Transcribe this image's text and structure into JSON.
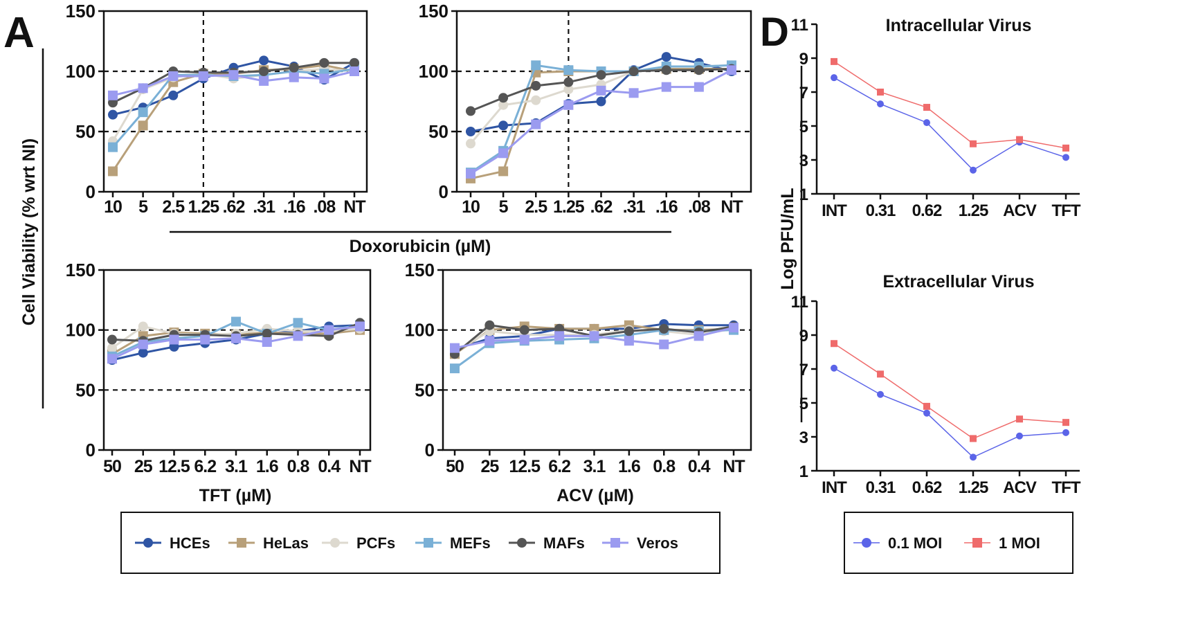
{
  "panel_labels": {
    "a": "A",
    "d": "D"
  },
  "colors": {
    "HCEs": "#2f55a4",
    "HeLas": "#b8a07a",
    "PCFs": "#ddd9cf",
    "MEFs": "#7ab0d6",
    "MAFs": "#555555",
    "Veros": "#9b9bf0",
    "moi_01": "#5b64e8",
    "moi_1": "#ef6b6b"
  },
  "shared": {
    "ylabel_a": "Cell Viability (% wrt NI)",
    "xlabel_dox": "Doxorubicin (µM)",
    "ylabel_d": "Log PFU/mL"
  },
  "legend_a": [
    {
      "name": "HCEs",
      "marker": "circle"
    },
    {
      "name": "HeLas",
      "marker": "square"
    },
    {
      "name": "PCFs",
      "marker": "circle"
    },
    {
      "name": "MEFs",
      "marker": "square"
    },
    {
      "name": "MAFs",
      "marker": "circle"
    },
    {
      "name": "Veros",
      "marker": "square"
    }
  ],
  "legend_d": [
    {
      "name": "0.1 MOI",
      "marker": "circle"
    },
    {
      "name": "1 MOI",
      "marker": "square"
    }
  ],
  "chart_data": [
    {
      "type": "line",
      "panel": "A",
      "title": "",
      "xlabel": "Doxorubicin (µM)",
      "ylabel": "Cell Viability (% wrt NI)",
      "categories": [
        "10",
        "5",
        "2.5",
        "1.25",
        ".62",
        ".31",
        ".16",
        ".08",
        "NT"
      ],
      "ylim": [
        0,
        150
      ],
      "yticks": [
        0,
        50,
        100,
        150
      ],
      "reference_lines_y": [
        50,
        100
      ],
      "reference_line_x": "1.25",
      "series": [
        {
          "name": "HCEs",
          "values": [
            64,
            70,
            80,
            94,
            103,
            109,
            104,
            93,
            107
          ]
        },
        {
          "name": "HeLas",
          "values": [
            17,
            55,
            91,
            98,
            98,
            101,
            102,
            105,
            100
          ]
        },
        {
          "name": "PCFs",
          "values": [
            42,
            85,
            95,
            98,
            94,
            97,
            100,
            102,
            100
          ]
        },
        {
          "name": "MEFs",
          "values": [
            37,
            66,
            97,
            97,
            96,
            97,
            100,
            98,
            102
          ]
        },
        {
          "name": "MAFs",
          "values": [
            74,
            86,
            100,
            99,
            99,
            100,
            103,
            107,
            107
          ]
        },
        {
          "name": "Veros",
          "values": [
            80,
            86,
            96,
            96,
            97,
            92,
            95,
            94,
            100
          ]
        }
      ]
    },
    {
      "type": "line",
      "panel": "A",
      "title": "",
      "xlabel": "Doxorubicin (µM)",
      "ylabel": "Cell Viability (% wrt NI)",
      "categories": [
        "10",
        "5",
        "2.5",
        "1.25",
        ".62",
        ".31",
        ".16",
        ".08",
        "NT"
      ],
      "ylim": [
        0,
        150
      ],
      "yticks": [
        0,
        50,
        100,
        150
      ],
      "reference_lines_y": [
        50,
        100
      ],
      "reference_line_x": "1.25",
      "series": [
        {
          "name": "HCEs",
          "values": [
            50,
            55,
            57,
            73,
            75,
            101,
            112,
            107,
            100
          ]
        },
        {
          "name": "HeLas",
          "values": [
            11,
            17,
            99,
            100,
            100,
            100,
            102,
            102,
            102
          ]
        },
        {
          "name": "PCFs",
          "values": [
            40,
            72,
            76,
            85,
            89,
            100,
            104,
            104,
            105
          ]
        },
        {
          "name": "MEFs",
          "values": [
            16,
            34,
            105,
            101,
            100,
            100,
            104,
            104,
            105
          ]
        },
        {
          "name": "MAFs",
          "values": [
            67,
            78,
            88,
            91,
            97,
            100,
            101,
            101,
            102
          ]
        },
        {
          "name": "Veros",
          "values": [
            15,
            32,
            56,
            72,
            84,
            82,
            87,
            87,
            101
          ]
        }
      ]
    },
    {
      "type": "line",
      "panel": "A",
      "title": "",
      "xlabel": "TFT (µM)",
      "ylabel": "Cell Viability (% wrt NI)",
      "categories": [
        "50",
        "25",
        "12.5",
        "6.2",
        "3.1",
        "1.6",
        "0.8",
        "0.4",
        "NT"
      ],
      "ylim": [
        0,
        150
      ],
      "yticks": [
        0,
        50,
        100,
        150
      ],
      "reference_lines_y": [
        50,
        100
      ],
      "series": [
        {
          "name": "HCEs",
          "values": [
            75,
            81,
            86,
            89,
            92,
            97,
            99,
            103,
            104
          ]
        },
        {
          "name": "HeLas",
          "values": [
            80,
            95,
            98,
            97,
            96,
            98,
            97,
            97,
            100
          ]
        },
        {
          "name": "PCFs",
          "values": [
            85,
            103,
            97,
            96,
            97,
            101,
            99,
            99,
            101
          ]
        },
        {
          "name": "MEFs",
          "values": [
            78,
            90,
            93,
            95,
            107,
            97,
            106,
            100,
            104
          ]
        },
        {
          "name": "MAFs",
          "values": [
            92,
            91,
            96,
            96,
            95,
            97,
            96,
            95,
            106
          ]
        },
        {
          "name": "Veros",
          "values": [
            76,
            88,
            92,
            92,
            93,
            90,
            95,
            100,
            103
          ]
        }
      ]
    },
    {
      "type": "line",
      "panel": "A",
      "title": "",
      "xlabel": "ACV (µM)",
      "ylabel": "Cell Viability (% wrt NI)",
      "categories": [
        "50",
        "25",
        "12.5",
        "6.2",
        "3.1",
        "1.6",
        "0.8",
        "0.4",
        "NT"
      ],
      "ylim": [
        0,
        150
      ],
      "yticks": [
        0,
        50,
        100,
        150
      ],
      "reference_lines_y": [
        50,
        100
      ],
      "series": [
        {
          "name": "HCEs",
          "values": [
            84,
            93,
            95,
            101,
            101,
            101,
            105,
            104,
            104
          ]
        },
        {
          "name": "HeLas",
          "values": [
            80,
            100,
            103,
            101,
            101,
            104,
            100,
            100,
            101
          ]
        },
        {
          "name": "PCFs",
          "values": [
            82,
            99,
            96,
            96,
            96,
            100,
            99,
            96,
            101
          ]
        },
        {
          "name": "MEFs",
          "values": [
            68,
            89,
            91,
            92,
            93,
            96,
            100,
            99,
            100
          ]
        },
        {
          "name": "MAFs",
          "values": [
            80,
            104,
            100,
            101,
            95,
            99,
            101,
            98,
            103
          ]
        },
        {
          "name": "Veros",
          "values": [
            85,
            91,
            92,
            95,
            95,
            91,
            88,
            95,
            102
          ]
        }
      ]
    },
    {
      "type": "line",
      "panel": "D",
      "title": "Intracellular Virus",
      "xlabel": "",
      "ylabel": "Log PFU/mL",
      "categories": [
        "INT",
        "0.31",
        "0.62",
        "1.25",
        "ACV",
        "TFT"
      ],
      "ylim": [
        1,
        11
      ],
      "yticks": [
        1,
        3,
        5,
        7,
        9,
        11
      ],
      "series": [
        {
          "name": "0.1 MOI",
          "values": [
            7.85,
            6.3,
            5.2,
            2.4,
            4.05,
            3.15
          ]
        },
        {
          "name": "1 MOI",
          "values": [
            8.8,
            7.0,
            6.1,
            3.95,
            4.2,
            3.7
          ]
        }
      ]
    },
    {
      "type": "line",
      "panel": "D",
      "title": "Extracellular Virus",
      "xlabel": "",
      "ylabel": "Log PFU/mL",
      "categories": [
        "INT",
        "0.31",
        "0.62",
        "1.25",
        "ACV",
        "TFT"
      ],
      "ylim": [
        1,
        11
      ],
      "yticks": [
        1,
        3,
        5,
        7,
        9,
        11
      ],
      "series": [
        {
          "name": "0.1 MOI",
          "values": [
            7.05,
            5.5,
            4.4,
            1.8,
            3.05,
            3.25
          ]
        },
        {
          "name": "1 MOI",
          "values": [
            8.5,
            6.7,
            4.8,
            2.9,
            4.05,
            3.85
          ]
        }
      ]
    }
  ]
}
